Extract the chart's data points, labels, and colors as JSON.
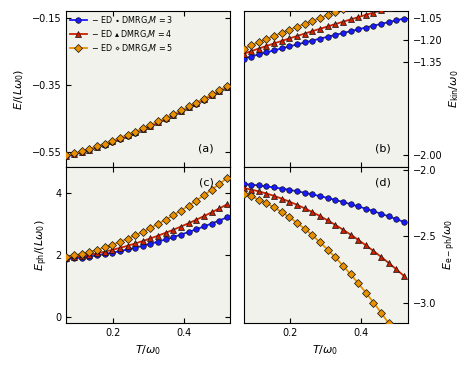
{
  "colors": {
    "M3": "#1a1aff",
    "M4": "#cc2200",
    "M5": "#e89000"
  },
  "markers": {
    "M3": "o",
    "M4": "^",
    "M5": "D"
  },
  "T_range": [
    0.05,
    0.52
  ],
  "panel_labels": [
    "(a)",
    "(b)",
    "(c)",
    "(d)"
  ],
  "xlabel": "$T/\\omega_0$",
  "ylabel_a": "$E/(L\\omega_0)$",
  "ylabel_b": "$E_{\\rm kin}/\\omega_0$",
  "ylabel_c": "$E_{\\rm ph}/(L\\omega_0)$",
  "ylabel_d": "$E_{\\rm e-ph}/\\omega_0$",
  "ylim_a": [
    -0.595,
    -0.13
  ],
  "yticks_a": [
    -0.55,
    -0.35,
    -0.15
  ],
  "ylim_b": [
    -2.08,
    -1.0
  ],
  "yticks_b": [
    -2.0,
    -1.35,
    -1.2,
    -1.05
  ],
  "ylim_c": [
    -0.2,
    4.85
  ],
  "yticks_c": [
    0.0,
    2.0,
    4.0
  ],
  "ylim_d": [
    -3.15,
    -1.98
  ],
  "yticks_d": [
    -3.0,
    -2.5,
    -2.0
  ],
  "xlim": [
    0.07,
    0.53
  ],
  "xticks": [
    0.2,
    0.4
  ],
  "panel_bg": "#f2f2ec",
  "fig_bg": "#ffffff"
}
